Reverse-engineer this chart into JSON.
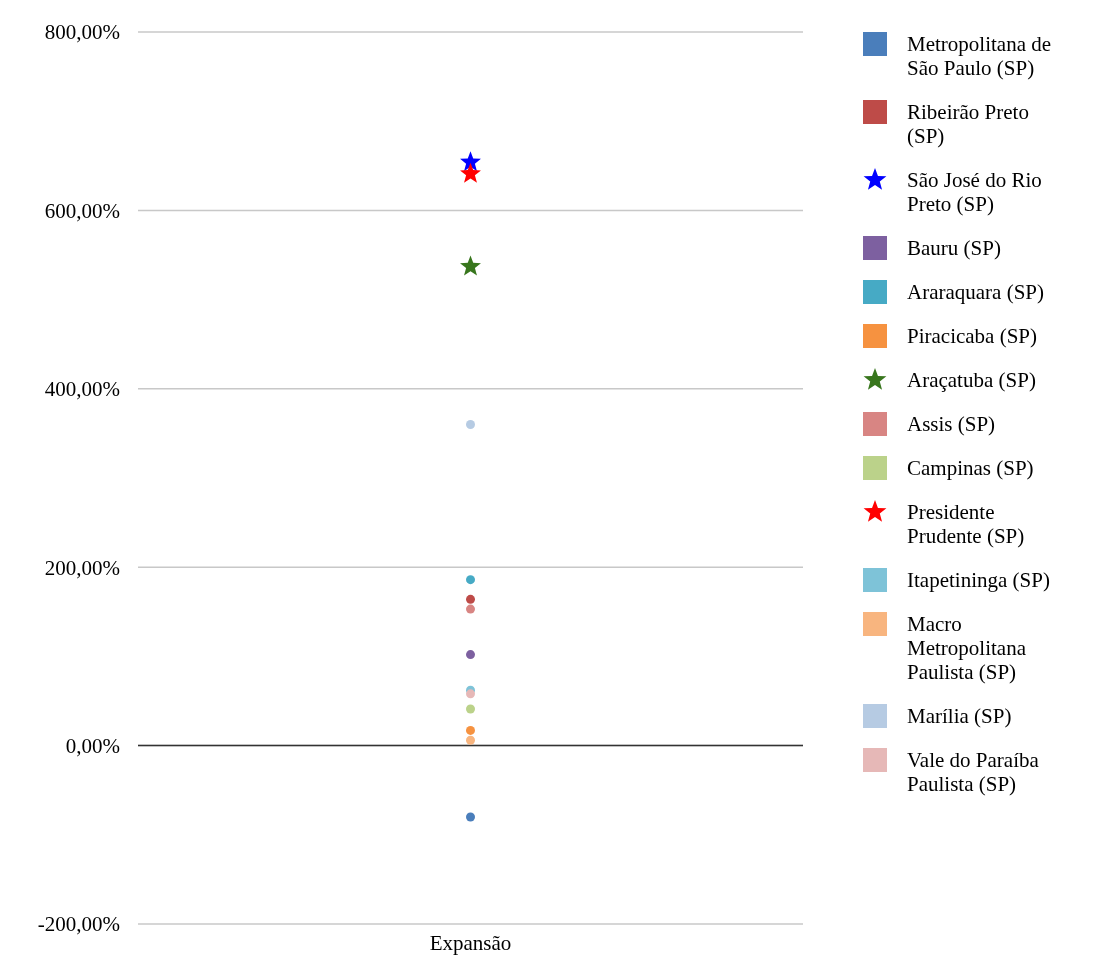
{
  "chart_data": {
    "type": "scatter",
    "categories": [
      "Expansão"
    ],
    "ylim": [
      -200,
      800
    ],
    "yticks": [
      {
        "value": -200,
        "label": "-200,00%"
      },
      {
        "value": 0,
        "label": "0,00%"
      },
      {
        "value": 200,
        "label": "200,00%"
      },
      {
        "value": 400,
        "label": "400,00%"
      },
      {
        "value": 600,
        "label": "600,00%"
      },
      {
        "value": 800,
        "label": "800,00%"
      }
    ],
    "grid": "y",
    "legend": "right",
    "marker": "circle",
    "series": [
      {
        "name": "Metropolitana de São Paulo (SP)",
        "color": "#4a7ebb",
        "values": [
          -80
        ]
      },
      {
        "name": "Ribeirão Preto (SP)",
        "color": "#be4b48",
        "values": [
          164
        ]
      },
      {
        "name": "São José do Rio Preto (SP)",
        "color": "#0000ff",
        "values": [
          654
        ],
        "marker": "star"
      },
      {
        "name": "Bauru (SP)",
        "color": "#7d60a0",
        "values": [
          102
        ]
      },
      {
        "name": "Araraquara (SP)",
        "color": "#46aac5",
        "values": [
          186
        ]
      },
      {
        "name": "Piracicaba (SP)",
        "color": "#f69240",
        "values": [
          17
        ]
      },
      {
        "name": "Araçatuba (SP)",
        "color": "#38761d",
        "values": [
          537
        ],
        "marker": "star"
      },
      {
        "name": "Assis (SP)",
        "color": "#d88583",
        "values": [
          153
        ]
      },
      {
        "name": "Campinas (SP)",
        "color": "#bbd28a",
        "values": [
          41
        ]
      },
      {
        "name": "Presidente Prudente (SP)",
        "color": "#ff0000",
        "values": [
          641
        ],
        "marker": "star"
      },
      {
        "name": "Itapetininga (SP)",
        "color": "#7ec3d8",
        "values": [
          62
        ]
      },
      {
        "name": "Macro Metropolitana Paulista (SP)",
        "color": "#f8b57f",
        "values": [
          6
        ]
      },
      {
        "name": "Marília (SP)",
        "color": "#b6cbe3",
        "values": [
          360
        ]
      },
      {
        "name": "Vale do Paraíba Paulista (SP)",
        "color": "#e6b8b7",
        "values": [
          58
        ]
      }
    ]
  }
}
